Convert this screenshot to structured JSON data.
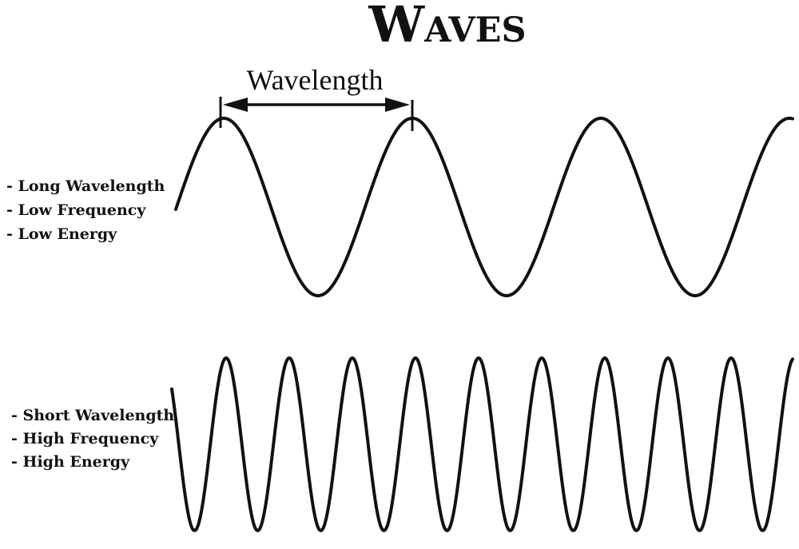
{
  "title": "Waves",
  "wavelength_label": "Wavelength",
  "long_wave": {
    "properties": [
      "- Long Wavelength",
      "- Low Frequency",
      "- Low Energy"
    ]
  },
  "short_wave": {
    "properties": [
      "- Short Wavelength",
      "- High Frequency",
      "- High Energy"
    ]
  },
  "colors": {
    "ink": "#111111",
    "background": "#ffffff"
  }
}
